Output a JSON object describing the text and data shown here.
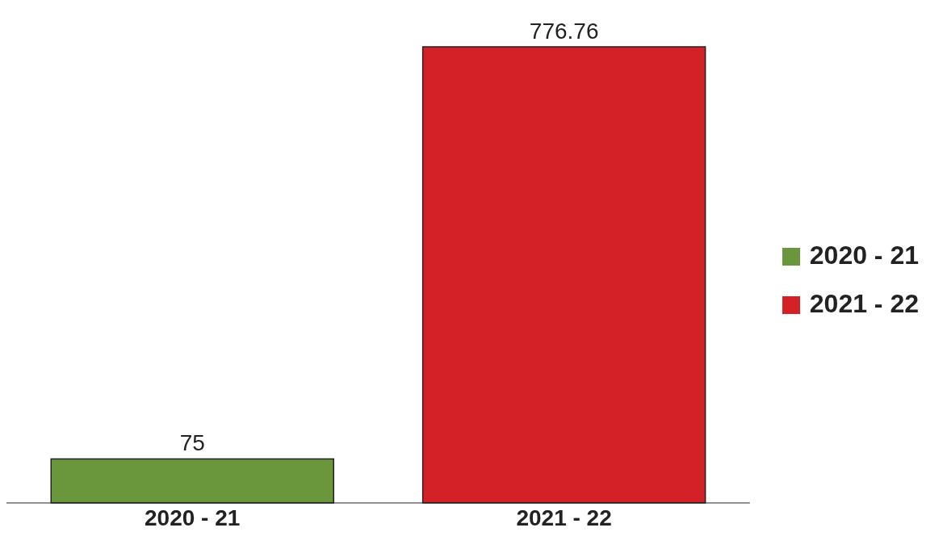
{
  "chart_data": {
    "type": "bar",
    "categories": [
      "2020 - 21",
      "2021 - 22"
    ],
    "stacked": true,
    "data_labels": true,
    "legend": "right",
    "series": [
      {
        "name": "2020 - 21",
        "color": "#6a973c",
        "values": [
          75,
          null
        ]
      },
      {
        "name": "2021 - 22",
        "color": "#d42027",
        "values": [
          null,
          776.76
        ]
      }
    ]
  }
}
